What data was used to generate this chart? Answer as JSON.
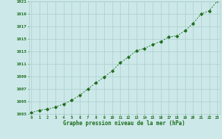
{
  "x": [
    0,
    1,
    2,
    3,
    4,
    5,
    6,
    7,
    8,
    9,
    10,
    11,
    12,
    13,
    14,
    15,
    16,
    17,
    18,
    19,
    20,
    21,
    22,
    23
  ],
  "y": [
    1003.2,
    1003.6,
    1003.8,
    1004.1,
    1004.6,
    1005.2,
    1006.0,
    1007.0,
    1008.0,
    1008.9,
    1009.9,
    1011.2,
    1012.1,
    1013.1,
    1013.5,
    1014.1,
    1014.6,
    1015.3,
    1015.5,
    1016.3,
    1017.5,
    1019.0,
    1019.5,
    1021.1
  ],
  "ylim": [
    1003,
    1021
  ],
  "xlim": [
    -0.3,
    23.3
  ],
  "yticks": [
    1003,
    1005,
    1007,
    1009,
    1011,
    1013,
    1015,
    1017,
    1019,
    1021
  ],
  "xticks": [
    0,
    1,
    2,
    3,
    4,
    5,
    6,
    7,
    8,
    9,
    10,
    11,
    12,
    13,
    14,
    15,
    16,
    17,
    18,
    19,
    20,
    21,
    22,
    23
  ],
  "xlabel": "Graphe pression niveau de la mer (hPa)",
  "line_color": "#1a6b1a",
  "marker": "D",
  "marker_size": 2.5,
  "bg_color": "#cce8e8",
  "grid_color": "#aacccc",
  "tick_label_color": "#1a6b1a",
  "xlabel_color": "#1a6b1a"
}
